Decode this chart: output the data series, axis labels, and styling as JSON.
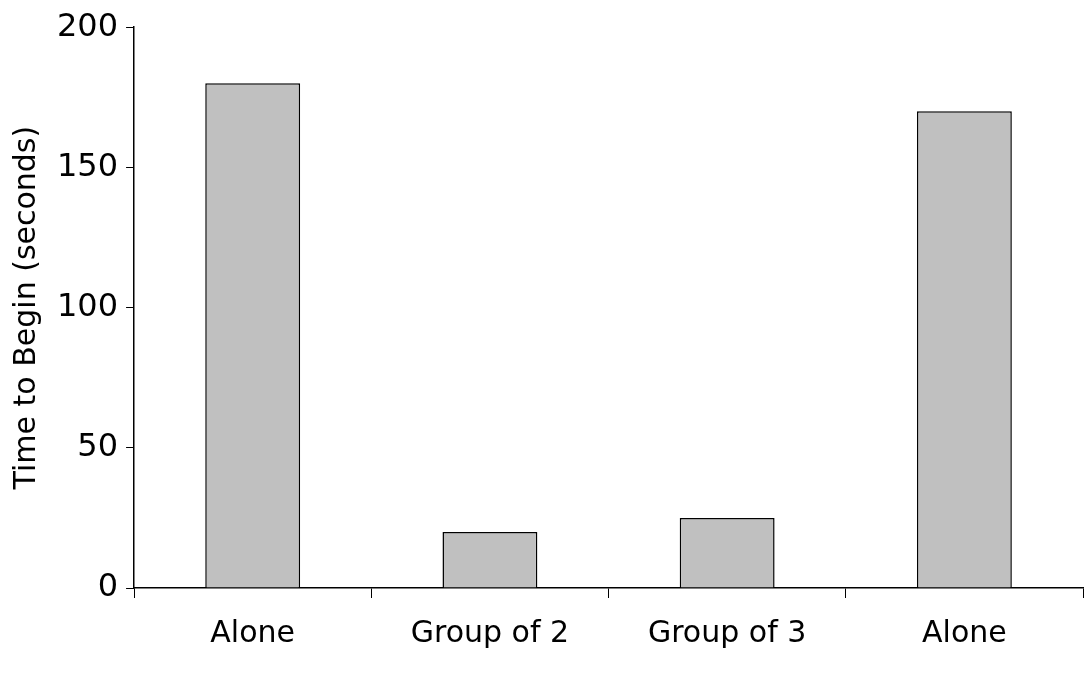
{
  "chart_data": {
    "type": "bar",
    "categories": [
      "Alone",
      "Group of 2",
      "Group of 3",
      "Alone"
    ],
    "values": [
      180,
      20,
      25,
      170
    ],
    "color": "#c0c0c0",
    "ylabel": "Time to Begin (seconds)",
    "ylim": [
      0,
      200
    ],
    "yticks": [
      0,
      50,
      100,
      150,
      200
    ],
    "grid": false,
    "legend": false
  }
}
